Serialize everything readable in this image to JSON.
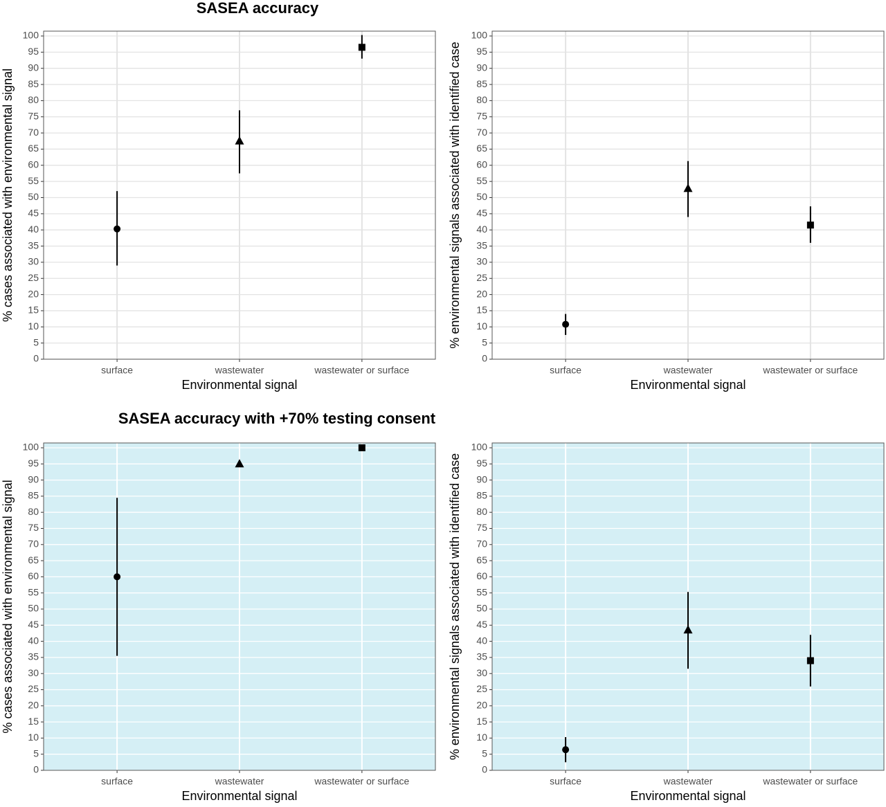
{
  "chart_data": [
    {
      "type": "pointrange",
      "title": "SASEA accuracy",
      "categories": [
        "surface",
        "wastewater",
        "wastewater or surface"
      ],
      "values": [
        40.3,
        67.5,
        96.5
      ],
      "lower": [
        29,
        57.5,
        93
      ],
      "upper": [
        52,
        77,
        100.3
      ],
      "markers": [
        "circle",
        "triangle",
        "square"
      ],
      "color": "#000000",
      "background": "#ffffff",
      "grid_color": "#e3e3e3",
      "xlabel": "Environmental signal",
      "ylabel": "% cases associated with environmental signal",
      "ylim": [
        0,
        101.5
      ],
      "yticks": [
        0,
        5,
        10,
        15,
        20,
        25,
        30,
        35,
        40,
        45,
        50,
        55,
        60,
        65,
        70,
        75,
        80,
        85,
        90,
        95,
        100
      ],
      "grid": true
    },
    {
      "type": "pointrange",
      "categories": [
        "surface",
        "wastewater",
        "wastewater or surface"
      ],
      "values": [
        10.8,
        52.8,
        41.5
      ],
      "lower": [
        7.5,
        44,
        36
      ],
      "upper": [
        14,
        61.3,
        47.3
      ],
      "markers": [
        "circle",
        "triangle",
        "square"
      ],
      "color": "#000000",
      "background": "#ffffff",
      "grid_color": "#e3e3e3",
      "xlabel": "Environmental signal",
      "ylabel": "% environmental signals associated with identified case",
      "ylim": [
        0,
        101.5
      ],
      "yticks": [
        0,
        5,
        10,
        15,
        20,
        25,
        30,
        35,
        40,
        45,
        50,
        55,
        60,
        65,
        70,
        75,
        80,
        85,
        90,
        95,
        100
      ],
      "grid": true
    },
    {
      "type": "pointrange",
      "title": "SASEA accuracy with +70% testing consent",
      "categories": [
        "surface",
        "wastewater",
        "wastewater or surface"
      ],
      "values": [
        60,
        95,
        100
      ],
      "lower": [
        35.5,
        95,
        100
      ],
      "upper": [
        84.5,
        95,
        100
      ],
      "markers": [
        "circle",
        "triangle",
        "square"
      ],
      "color": "#000000",
      "background": "#d5eff5",
      "grid_color": "#ffffff",
      "xlabel": "Environmental signal",
      "ylabel": "% cases associated with environmental signal",
      "ylim": [
        0,
        101.5
      ],
      "yticks": [
        0,
        5,
        10,
        15,
        20,
        25,
        30,
        35,
        40,
        45,
        50,
        55,
        60,
        65,
        70,
        75,
        80,
        85,
        90,
        95,
        100
      ],
      "grid": true
    },
    {
      "type": "pointrange",
      "categories": [
        "surface",
        "wastewater",
        "wastewater or surface"
      ],
      "values": [
        6.4,
        43.5,
        34
      ],
      "lower": [
        2.5,
        31.5,
        26
      ],
      "upper": [
        10.3,
        55.3,
        42
      ],
      "markers": [
        "circle",
        "triangle",
        "square"
      ],
      "color": "#000000",
      "background": "#d5eff5",
      "grid_color": "#ffffff",
      "xlabel": "Environmental signal",
      "ylabel": "% environmental signals associated with identified case",
      "ylim": [
        0,
        101.5
      ],
      "yticks": [
        0,
        5,
        10,
        15,
        20,
        25,
        30,
        35,
        40,
        45,
        50,
        55,
        60,
        65,
        70,
        75,
        80,
        85,
        90,
        95,
        100
      ],
      "grid": true
    }
  ]
}
